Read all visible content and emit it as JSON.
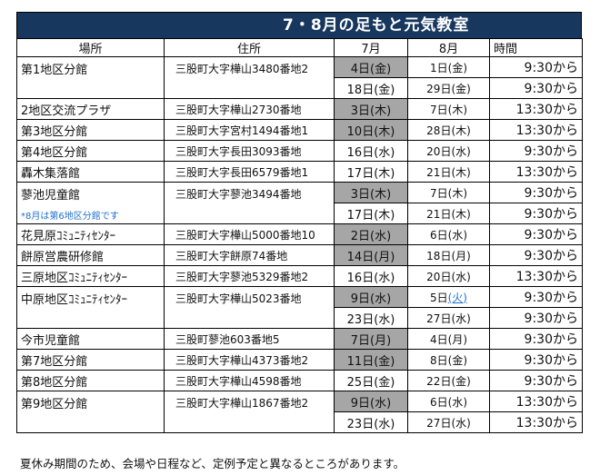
{
  "title": "7・8月の足もと元気教室",
  "headers": {
    "place": "場所",
    "address": "住所",
    "july": "7月",
    "august": "8月",
    "time": "時間"
  },
  "rows": [
    {
      "place": "第1地区分館",
      "address": "三股町大字樺山3480番地2",
      "dates": [
        {
          "july": "4日(金)",
          "august": "1日(金)",
          "time": "9:30から"
        },
        {
          "july": "18日(金)",
          "august": "29日(金)",
          "time": "9:30から"
        }
      ]
    },
    {
      "place": "2地区交流プラザ",
      "address": "三股町大字樺山2730番地",
      "dates": [
        {
          "july": "3日(木)",
          "august": "7日(木)",
          "time": "13:30から"
        }
      ]
    },
    {
      "place": "第3地区分館",
      "address": "三股町大字宮村1494番地1",
      "dates": [
        {
          "july": "10日(木)",
          "august": "28日(木)",
          "time": "13:30から"
        }
      ]
    },
    {
      "place": "第4地区分館",
      "address": "三股町大字長田3093番地",
      "dates": [
        {
          "july": "16日(水)",
          "august": "20日(水)",
          "time": "9:30から"
        }
      ]
    },
    {
      "place": "轟木集落館",
      "address": "三股町大字長田6579番地1",
      "dates": [
        {
          "july": "17日(木)",
          "august": "21日(木)",
          "time": "13:30から"
        }
      ]
    },
    {
      "place": "蓼池児童館",
      "note": "*8月は第6地区分館です",
      "address": "三股町大字蓼池3494番地",
      "dates": [
        {
          "july": "3日(木)",
          "august": "7日(木)",
          "time": "9:30から"
        },
        {
          "july": "17日(木)",
          "august": "21日(木)",
          "time": "9:30から"
        }
      ]
    },
    {
      "place": "花見原ｺﾐｭﾆﾃｨｾﾝﾀｰ",
      "address": "三股町大字樺山5000番地10",
      "dates": [
        {
          "july": "2日(水)",
          "august": "6日(水)",
          "time": "9:30から"
        }
      ]
    },
    {
      "place": "餅原営農研修館",
      "address": "三股町大字餅原74番地",
      "dates": [
        {
          "july": "14日(月)",
          "august": "18日(月)",
          "time": "9:30から"
        }
      ]
    },
    {
      "place": "三原地区ｺﾐｭﾆﾃｨｾﾝﾀｰ",
      "address": "三股町大字蓼池5329番地2",
      "dates": [
        {
          "july": "16日(水)",
          "august": "20日(水)",
          "time": "13:30から"
        }
      ]
    },
    {
      "place": "中原地区ｺﾐｭﾆﾃｨｾﾝﾀｰ",
      "address": "三股町大字樺山5023番地",
      "dates": [
        {
          "july": "9日(水)",
          "august_prefix": "5日",
          "august_link": "(火)",
          "time": "9:30から"
        },
        {
          "july": "23日(水)",
          "august": "27日(水)",
          "time": "9:30から"
        }
      ]
    },
    {
      "place": "今市児童館",
      "address": "三股町蓼池603番地5",
      "dates": [
        {
          "july": "7日(月)",
          "august": "4日(月)",
          "time": "9:30から"
        }
      ]
    },
    {
      "place": "第7地区分館",
      "address": "三股町大字樺山4373番地2",
      "dates": [
        {
          "july": "11日(金)",
          "august": "8日(金)",
          "time": "9:30から"
        }
      ]
    },
    {
      "place": "第8地区分館",
      "address": "三股町大字樺山4598番地",
      "dates": [
        {
          "july": "25日(金)",
          "august": "22日(金)",
          "time": "9:30から"
        }
      ]
    },
    {
      "place": "第9地区分館",
      "address": "三股町大字樺山1867番地2",
      "dates": [
        {
          "july": "9日(水)",
          "august": "6日(水)",
          "time": "13:30から"
        },
        {
          "july": "23日(水)",
          "august": "27日(水)",
          "time": "13:30から"
        }
      ]
    }
  ],
  "footer": "夏休み期間のため、会場や日程など、定例予定と異なるところがあります。",
  "colors": {
    "title_bg": "#17375e",
    "highlight": "#a6a6a6",
    "note": "#1f6fd1"
  }
}
